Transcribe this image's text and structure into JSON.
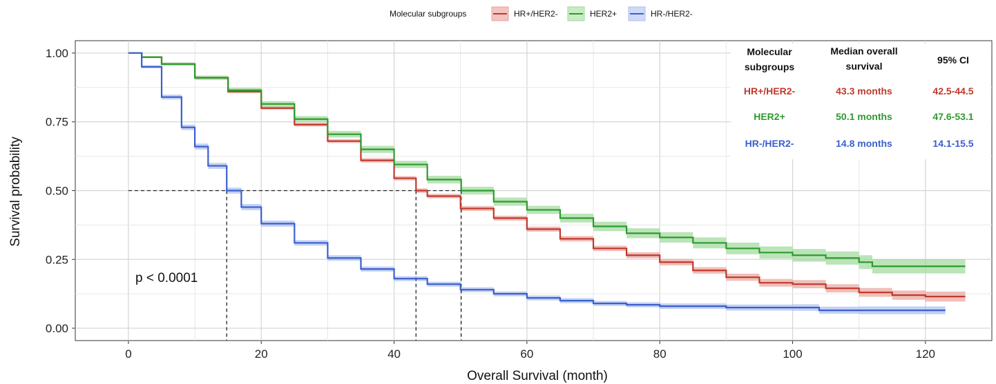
{
  "chart_data": {
    "type": "line",
    "xlabel": "Overall Survival (month)",
    "ylabel": "Survival probability",
    "xlim": [
      -8,
      130
    ],
    "ylim": [
      -0.045,
      1.045
    ],
    "x_ticks": [
      0,
      20,
      40,
      60,
      80,
      100,
      120
    ],
    "y_ticks": [
      0,
      0.25,
      0.5,
      0.75,
      1.0
    ],
    "x_tick_labels": [
      "0",
      "20",
      "40",
      "60",
      "80",
      "100",
      "120"
    ],
    "y_tick_labels": [
      "0.00",
      "0.25",
      "0.50",
      "0.75",
      "1.00"
    ],
    "grid": true,
    "legend": {
      "title": "Molecular subgroups",
      "position": "top",
      "entries": [
        "HR+/HER2-",
        "HER2+",
        "HR-/HER2-"
      ]
    },
    "annotation": "p < 0.0001",
    "median_reference_y": 0.5,
    "series": [
      {
        "name": "HR+/HER2-",
        "color": "#c0392b",
        "band_color": "#e8a49c",
        "median": 43.3,
        "x": [
          0,
          2,
          5,
          10,
          15,
          20,
          25,
          30,
          35,
          40,
          43.3,
          45,
          50,
          55,
          60,
          65,
          70,
          75,
          80,
          85,
          90,
          95,
          100,
          105,
          110,
          115,
          120,
          126
        ],
        "y": [
          1.0,
          0.985,
          0.96,
          0.91,
          0.86,
          0.8,
          0.74,
          0.68,
          0.61,
          0.545,
          0.5,
          0.48,
          0.435,
          0.4,
          0.36,
          0.325,
          0.29,
          0.265,
          0.24,
          0.21,
          0.185,
          0.165,
          0.16,
          0.145,
          0.13,
          0.12,
          0.115,
          0.115
        ],
        "ci_halfwidth": [
          0,
          0.003,
          0.004,
          0.005,
          0.006,
          0.006,
          0.007,
          0.007,
          0.008,
          0.008,
          0.008,
          0.008,
          0.009,
          0.009,
          0.009,
          0.01,
          0.01,
          0.011,
          0.012,
          0.012,
          0.013,
          0.014,
          0.015,
          0.015,
          0.016,
          0.017,
          0.018,
          0.018
        ]
      },
      {
        "name": "HER2+",
        "color": "#2e9a2e",
        "band_color": "#9ed99a",
        "median": 50.1,
        "x": [
          0,
          2,
          5,
          10,
          15,
          20,
          25,
          30,
          35,
          40,
          45,
          50.1,
          55,
          60,
          65,
          70,
          75,
          80,
          85,
          90,
          95,
          100,
          105,
          110,
          112,
          120,
          126
        ],
        "y": [
          1.0,
          0.985,
          0.96,
          0.91,
          0.865,
          0.815,
          0.76,
          0.705,
          0.65,
          0.595,
          0.54,
          0.5,
          0.46,
          0.43,
          0.4,
          0.37,
          0.345,
          0.33,
          0.31,
          0.29,
          0.275,
          0.265,
          0.255,
          0.24,
          0.225,
          0.225,
          0.225
        ],
        "ci_halfwidth": [
          0,
          0.004,
          0.006,
          0.008,
          0.009,
          0.01,
          0.011,
          0.012,
          0.013,
          0.013,
          0.014,
          0.014,
          0.015,
          0.015,
          0.016,
          0.017,
          0.018,
          0.019,
          0.02,
          0.021,
          0.022,
          0.023,
          0.024,
          0.025,
          0.026,
          0.026,
          0.026
        ]
      },
      {
        "name": "HR-/HER2-",
        "color": "#3a5fcd",
        "band_color": "#a9bdf0",
        "median": 14.8,
        "x": [
          0,
          2,
          5,
          8,
          10,
          12,
          14.8,
          17,
          20,
          25,
          30,
          35,
          40,
          45,
          50,
          55,
          60,
          65,
          70,
          75,
          80,
          90,
          100,
          104,
          110,
          123
        ],
        "y": [
          1.0,
          0.95,
          0.84,
          0.73,
          0.66,
          0.59,
          0.5,
          0.44,
          0.38,
          0.31,
          0.255,
          0.215,
          0.18,
          0.16,
          0.14,
          0.125,
          0.11,
          0.1,
          0.09,
          0.085,
          0.08,
          0.075,
          0.075,
          0.065,
          0.065,
          0.065
        ],
        "ci_halfwidth": [
          0,
          0.006,
          0.009,
          0.01,
          0.011,
          0.011,
          0.011,
          0.011,
          0.011,
          0.01,
          0.01,
          0.009,
          0.009,
          0.009,
          0.009,
          0.009,
          0.009,
          0.009,
          0.009,
          0.009,
          0.01,
          0.011,
          0.012,
          0.013,
          0.014,
          0.015
        ]
      }
    ]
  },
  "table": {
    "headers": [
      [
        "Molecular",
        "subgroups"
      ],
      [
        "Median overall",
        "survival"
      ],
      [
        "95% CI"
      ]
    ],
    "rows": [
      {
        "group": "HR+/HER2-",
        "median": "43.3 months",
        "ci": "42.5-44.5",
        "color": "#c0392b"
      },
      {
        "group": "HER2+",
        "median": "50.1 months",
        "ci": "47.6-53.1",
        "color": "#2e9a2e"
      },
      {
        "group": "HR-/HER2-",
        "median": "14.8 months",
        "ci": "14.1-15.5",
        "color": "#3a5fcd"
      }
    ]
  }
}
